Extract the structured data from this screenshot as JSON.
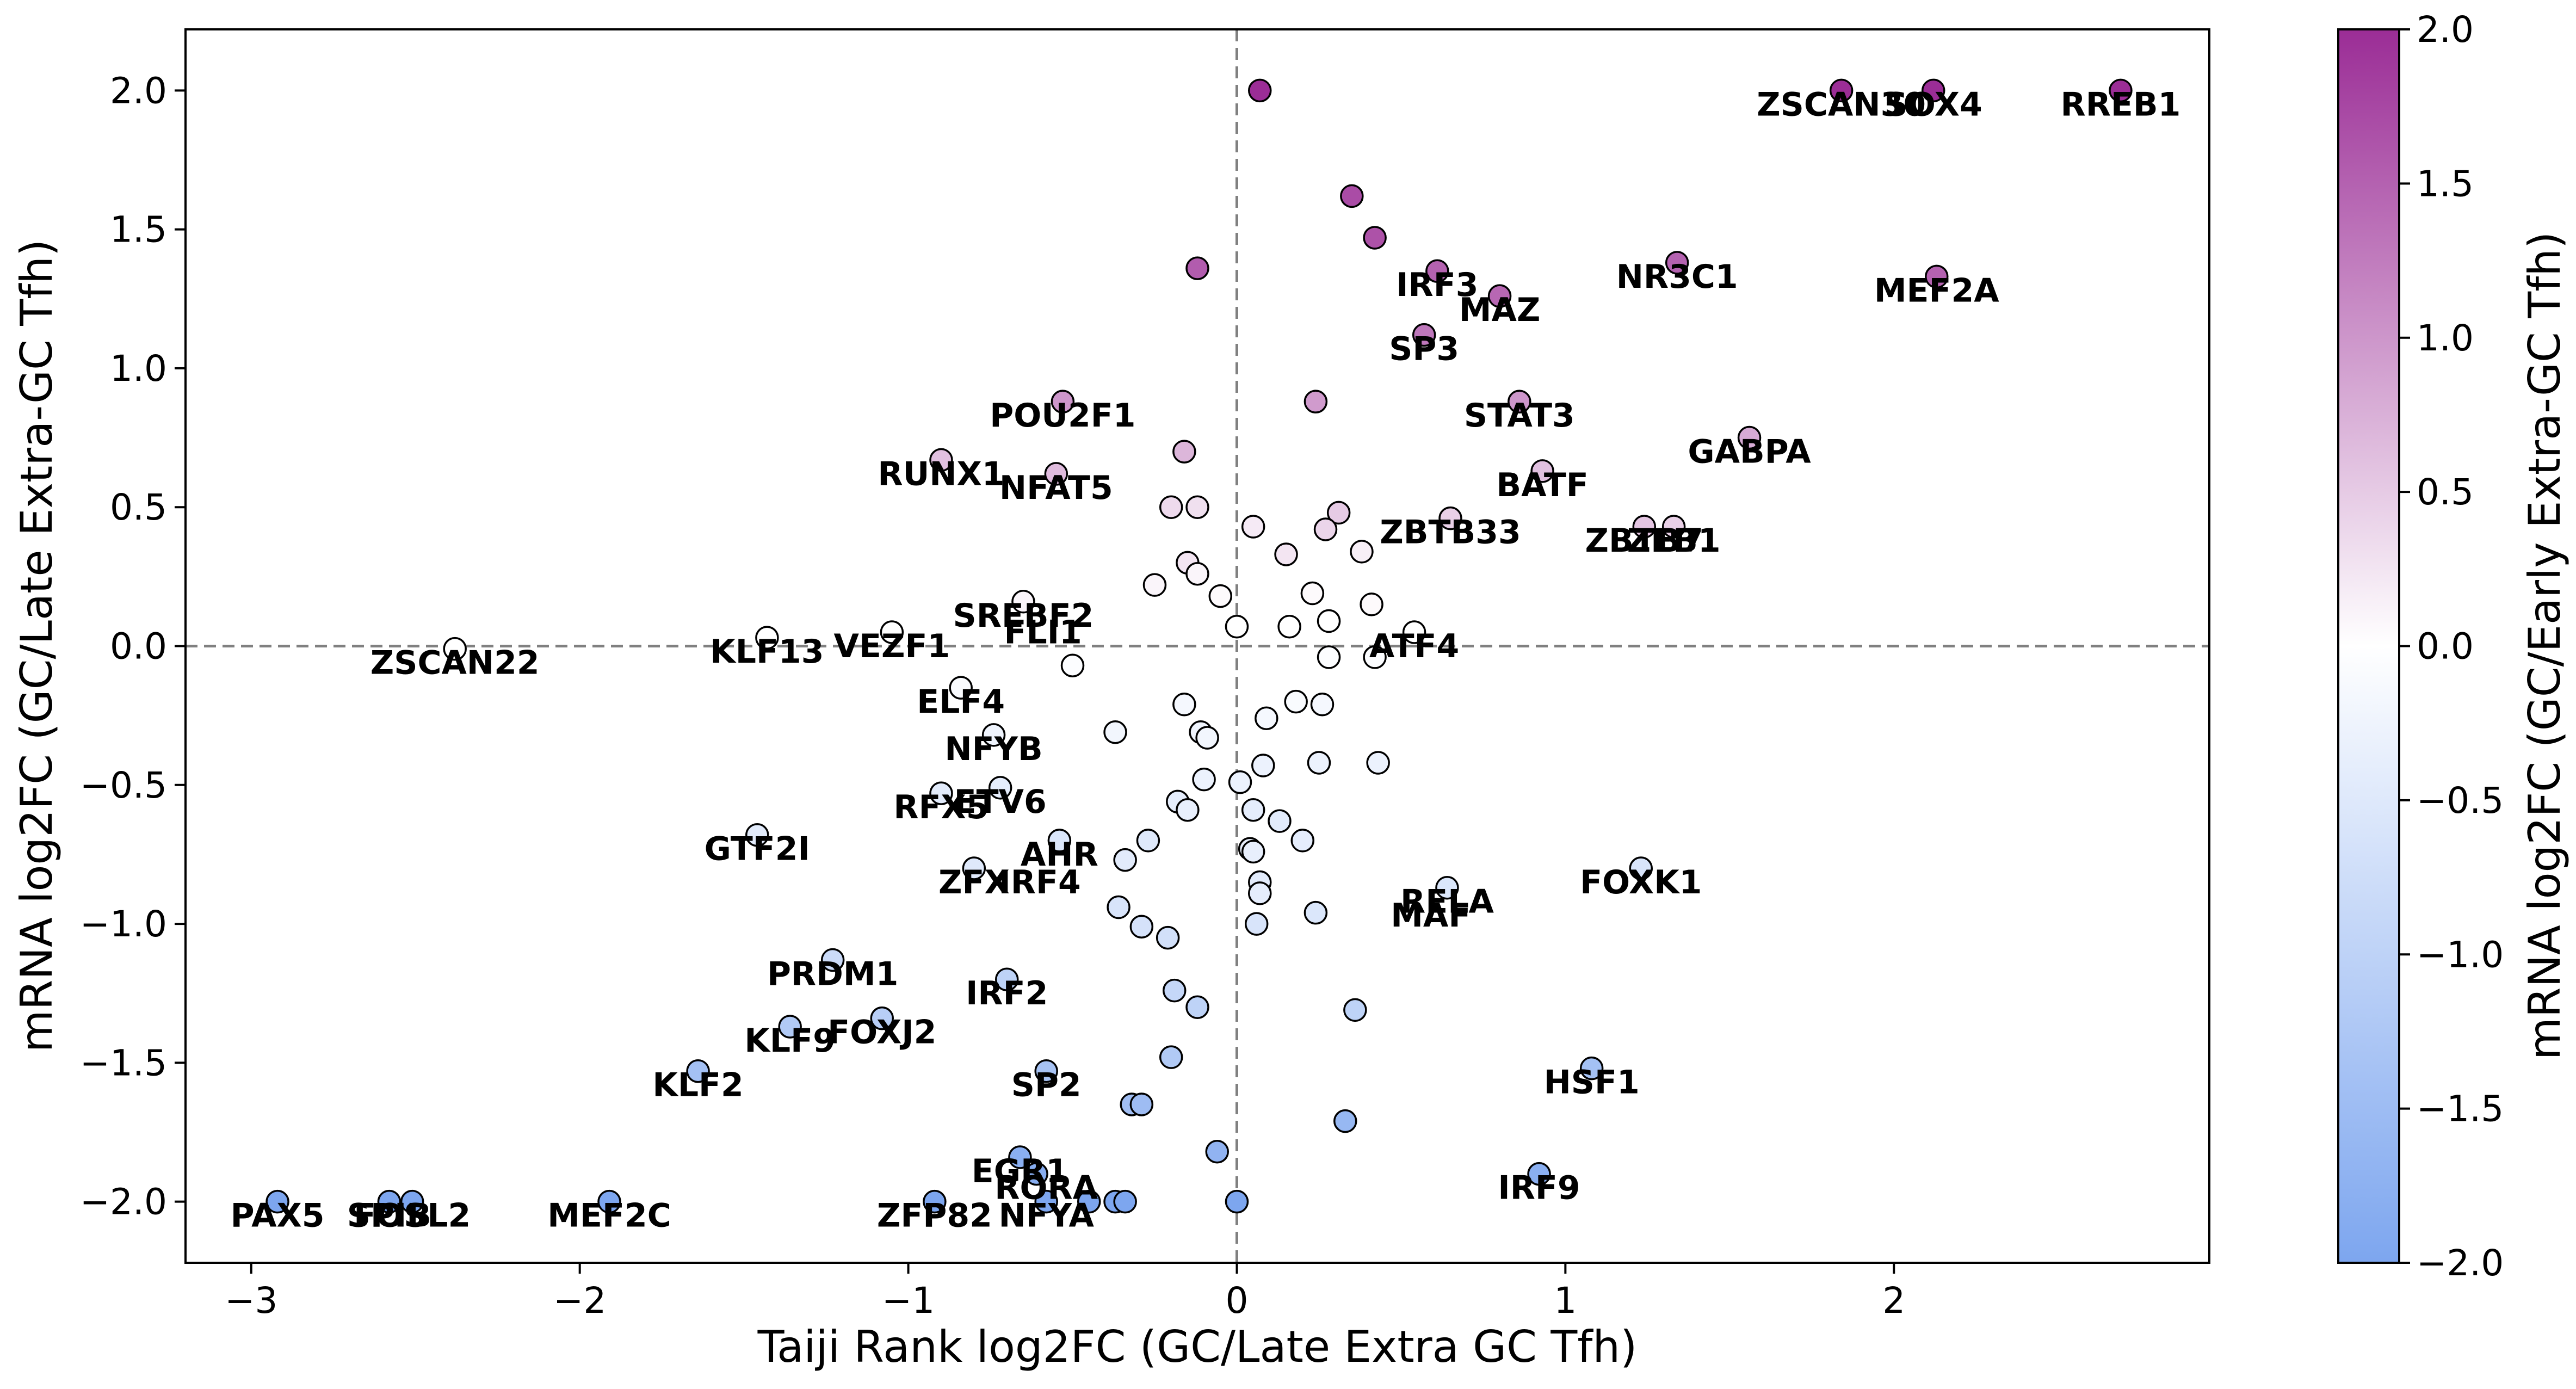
{
  "chart_data": {
    "type": "scatter",
    "title": "",
    "xlabel": "Taiji Rank log2FC (GC/Late Extra GC Tfh)",
    "ylabel": "mRNA log2FC (GC/Late Extra-GC Tfh)",
    "xlim": [
      -3.2,
      2.96
    ],
    "ylim": [
      -2.22,
      2.22
    ],
    "x_ticks": [
      -3,
      -2,
      -1,
      0,
      1,
      2
    ],
    "x_tick_labels": [
      "−3",
      "−2",
      "−1",
      "0",
      "1",
      "2"
    ],
    "y_ticks": [
      2.0,
      1.5,
      1.0,
      0.5,
      0.0,
      -0.5,
      -1.0,
      -1.5,
      -2.0
    ],
    "y_tick_labels": [
      "2.0",
      "1.5",
      "1.0",
      "0.5",
      "0.0",
      "−0.5",
      "−1.0",
      "−1.5",
      "−2.0"
    ],
    "reference_lines": {
      "x": 0,
      "y": 0
    },
    "grid": false,
    "colorbar": {
      "label": "mRNA log2FC (GC/Early Extra-GC Tfh)",
      "range": [
        -2.0,
        2.0
      ],
      "ticks": [
        2.0,
        1.5,
        1.0,
        0.5,
        0.0,
        -0.5,
        -1.0,
        -1.5,
        -2.0
      ],
      "tick_labels": [
        "2.0",
        "1.5",
        "1.0",
        "0.5",
        "0.0",
        "−0.5",
        "−1.0",
        "−1.5",
        "−2.0"
      ],
      "colors": {
        "high": "#9b2d96",
        "mid": "#ffffff",
        "low": "#7da6ef"
      }
    },
    "points": [
      {
        "x": 0.07,
        "y": 2.0,
        "c": 2.0
      },
      {
        "x": 1.84,
        "y": 2.0,
        "c": 2.0
      },
      {
        "x": 2.12,
        "y": 2.0,
        "c": 2.0
      },
      {
        "x": 2.69,
        "y": 2.0,
        "c": 2.0
      },
      {
        "x": 0.35,
        "y": 1.62,
        "c": 1.7
      },
      {
        "x": 0.42,
        "y": 1.47,
        "c": 1.65
      },
      {
        "x": -0.12,
        "y": 1.36,
        "c": 1.55
      },
      {
        "x": 0.61,
        "y": 1.35,
        "c": 1.5
      },
      {
        "x": 1.34,
        "y": 1.38,
        "c": 1.5
      },
      {
        "x": 2.13,
        "y": 1.33,
        "c": 1.5
      },
      {
        "x": 0.8,
        "y": 1.26,
        "c": 1.45
      },
      {
        "x": 0.57,
        "y": 1.12,
        "c": 1.3
      },
      {
        "x": -0.53,
        "y": 0.88,
        "c": 1.0
      },
      {
        "x": 0.24,
        "y": 0.88,
        "c": 0.95
      },
      {
        "x": 0.86,
        "y": 0.88,
        "c": 1.0
      },
      {
        "x": 1.56,
        "y": 0.75,
        "c": 0.8
      },
      {
        "x": -0.16,
        "y": 0.7,
        "c": 0.7
      },
      {
        "x": -0.9,
        "y": 0.67,
        "c": 0.6
      },
      {
        "x": -0.55,
        "y": 0.62,
        "c": 0.65
      },
      {
        "x": 0.93,
        "y": 0.63,
        "c": 0.6
      },
      {
        "x": -0.2,
        "y": 0.5,
        "c": 0.35
      },
      {
        "x": -0.12,
        "y": 0.5,
        "c": 0.3
      },
      {
        "x": 0.05,
        "y": 0.43,
        "c": 0.2
      },
      {
        "x": 0.31,
        "y": 0.48,
        "c": 0.5
      },
      {
        "x": 0.27,
        "y": 0.42,
        "c": 0.4
      },
      {
        "x": 0.65,
        "y": 0.46,
        "c": 0.45
      },
      {
        "x": 1.24,
        "y": 0.43,
        "c": 0.55
      },
      {
        "x": 1.33,
        "y": 0.43,
        "c": 0.45
      },
      {
        "x": 0.38,
        "y": 0.34,
        "c": 0.15
      },
      {
        "x": 0.15,
        "y": 0.33,
        "c": 0.25
      },
      {
        "x": -0.15,
        "y": 0.3,
        "c": 0.25
      },
      {
        "x": -0.12,
        "y": 0.26,
        "c": 0.1
      },
      {
        "x": -0.25,
        "y": 0.22,
        "c": 0.1
      },
      {
        "x": -0.05,
        "y": 0.18,
        "c": 0.05
      },
      {
        "x": 0.23,
        "y": 0.19,
        "c": 0.05
      },
      {
        "x": 0.41,
        "y": 0.15,
        "c": 0.05
      },
      {
        "x": -0.65,
        "y": 0.16,
        "c": 0.1
      },
      {
        "x": 0.0,
        "y": 0.07,
        "c": 0.0
      },
      {
        "x": 0.16,
        "y": 0.07,
        "c": 0.0
      },
      {
        "x": 0.28,
        "y": 0.09,
        "c": 0.0
      },
      {
        "x": 0.54,
        "y": 0.05,
        "c": 0.0
      },
      {
        "x": -1.43,
        "y": 0.03,
        "c": 0.0
      },
      {
        "x": -1.05,
        "y": 0.05,
        "c": 0.0
      },
      {
        "x": -2.38,
        "y": -0.01,
        "c": 0.0
      },
      {
        "x": 0.28,
        "y": -0.04,
        "c": -0.05
      },
      {
        "x": 0.42,
        "y": -0.04,
        "c": -0.05
      },
      {
        "x": -0.5,
        "y": -0.07,
        "c": -0.05
      },
      {
        "x": -0.84,
        "y": -0.15,
        "c": -0.1
      },
      {
        "x": 0.18,
        "y": -0.2,
        "c": -0.1
      },
      {
        "x": 0.26,
        "y": -0.21,
        "c": -0.15
      },
      {
        "x": -0.16,
        "y": -0.21,
        "c": -0.15
      },
      {
        "x": 0.09,
        "y": -0.26,
        "c": -0.15
      },
      {
        "x": -0.37,
        "y": -0.31,
        "c": -0.2
      },
      {
        "x": -0.11,
        "y": -0.31,
        "c": -0.25
      },
      {
        "x": -0.09,
        "y": -0.33,
        "c": -0.2
      },
      {
        "x": -0.74,
        "y": -0.32,
        "c": -0.25
      },
      {
        "x": 0.25,
        "y": -0.42,
        "c": -0.3
      },
      {
        "x": 0.43,
        "y": -0.42,
        "c": -0.3
      },
      {
        "x": 0.08,
        "y": -0.43,
        "c": -0.3
      },
      {
        "x": -0.1,
        "y": -0.48,
        "c": -0.3
      },
      {
        "x": 0.01,
        "y": -0.49,
        "c": -0.3
      },
      {
        "x": -0.72,
        "y": -0.51,
        "c": -0.4
      },
      {
        "x": -0.9,
        "y": -0.53,
        "c": -0.45
      },
      {
        "x": -0.18,
        "y": -0.56,
        "c": -0.4
      },
      {
        "x": -0.15,
        "y": -0.59,
        "c": -0.35
      },
      {
        "x": 0.05,
        "y": -0.59,
        "c": -0.4
      },
      {
        "x": 0.13,
        "y": -0.63,
        "c": -0.45
      },
      {
        "x": 0.2,
        "y": -0.7,
        "c": -0.4
      },
      {
        "x": -0.27,
        "y": -0.7,
        "c": -0.5
      },
      {
        "x": -0.54,
        "y": -0.7,
        "c": -0.55
      },
      {
        "x": -1.46,
        "y": -0.68,
        "c": -0.45
      },
      {
        "x": 0.04,
        "y": -0.73,
        "c": -0.35
      },
      {
        "x": 0.05,
        "y": -0.74,
        "c": -0.35
      },
      {
        "x": -0.34,
        "y": -0.77,
        "c": -0.45
      },
      {
        "x": -0.8,
        "y": -0.8,
        "c": -0.5
      },
      {
        "x": 1.23,
        "y": -0.8,
        "c": -0.6
      },
      {
        "x": 0.07,
        "y": -0.85,
        "c": -0.45
      },
      {
        "x": 0.07,
        "y": -0.89,
        "c": -0.4
      },
      {
        "x": 0.64,
        "y": -0.87,
        "c": -0.55
      },
      {
        "x": -0.36,
        "y": -0.94,
        "c": -0.6
      },
      {
        "x": 0.24,
        "y": -0.96,
        "c": -0.55
      },
      {
        "x": 0.06,
        "y": -1.0,
        "c": -0.6
      },
      {
        "x": -0.29,
        "y": -1.01,
        "c": -0.65
      },
      {
        "x": -0.21,
        "y": -1.05,
        "c": -0.7
      },
      {
        "x": -1.23,
        "y": -1.13,
        "c": -0.8
      },
      {
        "x": -0.7,
        "y": -1.2,
        "c": -1.0
      },
      {
        "x": -0.19,
        "y": -1.24,
        "c": -0.9
      },
      {
        "x": -0.12,
        "y": -1.3,
        "c": -1.0
      },
      {
        "x": -1.08,
        "y": -1.34,
        "c": -1.1
      },
      {
        "x": -1.36,
        "y": -1.37,
        "c": -1.2
      },
      {
        "x": 0.36,
        "y": -1.31,
        "c": -1.0
      },
      {
        "x": -0.2,
        "y": -1.48,
        "c": -1.2
      },
      {
        "x": -0.58,
        "y": -1.53,
        "c": -1.35
      },
      {
        "x": -1.64,
        "y": -1.53,
        "c": -1.4
      },
      {
        "x": 1.08,
        "y": -1.52,
        "c": -1.4
      },
      {
        "x": -0.32,
        "y": -1.65,
        "c": -1.45
      },
      {
        "x": -0.29,
        "y": -1.65,
        "c": -1.5
      },
      {
        "x": 0.33,
        "y": -1.71,
        "c": -1.6
      },
      {
        "x": -0.06,
        "y": -1.82,
        "c": -1.7
      },
      {
        "x": -0.66,
        "y": -1.84,
        "c": -1.8
      },
      {
        "x": -0.61,
        "y": -1.9,
        "c": -1.85
      },
      {
        "x": 0.92,
        "y": -1.9,
        "c": -1.8
      },
      {
        "x": -2.92,
        "y": -2.0,
        "c": -2.0
      },
      {
        "x": -2.58,
        "y": -2.0,
        "c": -2.0
      },
      {
        "x": -2.51,
        "y": -2.0,
        "c": -2.0
      },
      {
        "x": -1.91,
        "y": -2.0,
        "c": -2.0
      },
      {
        "x": -0.92,
        "y": -2.0,
        "c": -2.0
      },
      {
        "x": -0.58,
        "y": -2.0,
        "c": -2.0
      },
      {
        "x": -0.45,
        "y": -2.0,
        "c": -2.0
      },
      {
        "x": -0.37,
        "y": -2.0,
        "c": -2.0
      },
      {
        "x": -0.34,
        "y": -2.0,
        "c": -2.0
      },
      {
        "x": 0.0,
        "y": -2.0,
        "c": -2.0
      }
    ],
    "annotations": [
      {
        "text": "ZSCAN30",
        "x": 1.84,
        "y": 2.0
      },
      {
        "text": "SOX4",
        "x": 2.12,
        "y": 2.0
      },
      {
        "text": "RREB1",
        "x": 2.69,
        "y": 2.0
      },
      {
        "text": "NR3C1",
        "x": 1.34,
        "y": 1.38
      },
      {
        "text": "IRF3",
        "x": 0.61,
        "y": 1.35
      },
      {
        "text": "MEF2A",
        "x": 2.13,
        "y": 1.33
      },
      {
        "text": "MAZ",
        "x": 0.8,
        "y": 1.26
      },
      {
        "text": "SP3",
        "x": 0.57,
        "y": 1.12
      },
      {
        "text": "POU2F1",
        "x": -0.53,
        "y": 0.88
      },
      {
        "text": "STAT3",
        "x": 0.86,
        "y": 0.88
      },
      {
        "text": "GABPA",
        "x": 1.56,
        "y": 0.75
      },
      {
        "text": "RUNX1",
        "x": -0.9,
        "y": 0.67
      },
      {
        "text": "NFAT5",
        "x": -0.55,
        "y": 0.62
      },
      {
        "text": "BATF",
        "x": 0.93,
        "y": 0.63
      },
      {
        "text": "ZBTB33",
        "x": 0.65,
        "y": 0.46
      },
      {
        "text": "ZBTB7",
        "x": 1.24,
        "y": 0.43
      },
      {
        "text": "ZEB1",
        "x": 1.33,
        "y": 0.43
      },
      {
        "text": "SREBF2",
        "x": -0.65,
        "y": 0.16
      },
      {
        "text": "FLI1",
        "x": -0.59,
        "y": 0.1
      },
      {
        "text": "ZSCAN22",
        "x": -2.38,
        "y": -0.01
      },
      {
        "text": "KLF13",
        "x": -1.43,
        "y": 0.03
      },
      {
        "text": "VEZF1",
        "x": -1.05,
        "y": 0.05
      },
      {
        "text": "ATF4",
        "x": 0.54,
        "y": 0.05
      },
      {
        "text": "ELF4",
        "x": -0.84,
        "y": -0.15
      },
      {
        "text": "NFYB",
        "x": -0.74,
        "y": -0.32
      },
      {
        "text": "ETV6",
        "x": -0.72,
        "y": -0.51
      },
      {
        "text": "RFX5",
        "x": -0.9,
        "y": -0.53
      },
      {
        "text": "GTF2I",
        "x": -1.46,
        "y": -0.68
      },
      {
        "text": "AHR",
        "x": -0.54,
        "y": -0.7
      },
      {
        "text": "ZFX",
        "x": -0.8,
        "y": -0.8
      },
      {
        "text": "IRF4",
        "x": -0.6,
        "y": -0.8
      },
      {
        "text": "FOXK1",
        "x": 1.23,
        "y": -0.8
      },
      {
        "text": "RELA",
        "x": 0.64,
        "y": -0.87
      },
      {
        "text": "MAF",
        "x": 0.59,
        "y": -0.92
      },
      {
        "text": "PRDM1",
        "x": -1.23,
        "y": -1.13
      },
      {
        "text": "IRF2",
        "x": -0.7,
        "y": -1.2
      },
      {
        "text": "FOXJ2",
        "x": -1.08,
        "y": -1.34
      },
      {
        "text": "KLF9",
        "x": -1.36,
        "y": -1.37
      },
      {
        "text": "KLF2",
        "x": -1.64,
        "y": -1.53
      },
      {
        "text": "SP2",
        "x": -0.58,
        "y": -1.53
      },
      {
        "text": "HSF1",
        "x": 1.08,
        "y": -1.52
      },
      {
        "text": "EGR1",
        "x": -0.66,
        "y": -1.84
      },
      {
        "text": "IRF9",
        "x": 0.92,
        "y": -1.9
      },
      {
        "text": "RORA",
        "x": -0.58,
        "y": -1.9
      },
      {
        "text": "PAX5",
        "x": -2.92,
        "y": -2.0
      },
      {
        "text": "SPIB",
        "x": -2.58,
        "y": -2.0
      },
      {
        "text": "FOSL2",
        "x": -2.51,
        "y": -2.0
      },
      {
        "text": "MEF2C",
        "x": -1.91,
        "y": -2.0
      },
      {
        "text": "ZFP82",
        "x": -0.92,
        "y": -2.0
      },
      {
        "text": "NFYA",
        "x": -0.58,
        "y": -2.0
      }
    ]
  }
}
